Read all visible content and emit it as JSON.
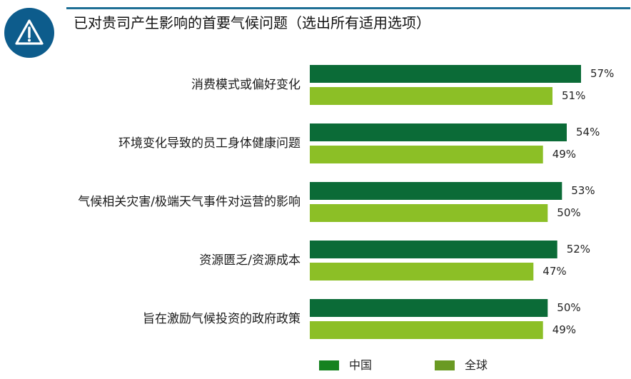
{
  "title": "已对贵司产生影响的首要气候问题（选出所有适用选项）",
  "icon": "warning-icon",
  "colors": {
    "badge": "#0d5c8c",
    "header_line": "#1e6f95",
    "china_bar": "#0b6b37",
    "global_bar": "#8cbf26",
    "legend_china": "#16821f",
    "legend_global": "#6a9a23"
  },
  "chart_data": {
    "type": "bar",
    "orientation": "horizontal",
    "categories": [
      "消费模式或偏好变化",
      "环境变化导致的员工身体健康问题",
      "气候相关灾害/极端天气事件对运营的影响",
      "资源匮乏/资源成本",
      "旨在激励气候投资的政府政策"
    ],
    "series": [
      {
        "name": "中国",
        "values": [
          57,
          54,
          53,
          52,
          50
        ],
        "labels": [
          "57%",
          "54%",
          "53%",
          "52%",
          "50%"
        ]
      },
      {
        "name": "全球",
        "values": [
          51,
          49,
          50,
          47,
          49
        ],
        "labels": [
          "51%",
          "49%",
          "50%",
          "47%",
          "49%"
        ]
      }
    ],
    "title": "已对贵司产生影响的首要气候问题（选出所有适用选项）",
    "xlabel": "",
    "ylabel": "",
    "grid": false,
    "legend": "bottom"
  },
  "legend": [
    {
      "label": "中国",
      "color": "#16821f"
    },
    {
      "label": "全球",
      "color": "#6a9a23"
    }
  ]
}
